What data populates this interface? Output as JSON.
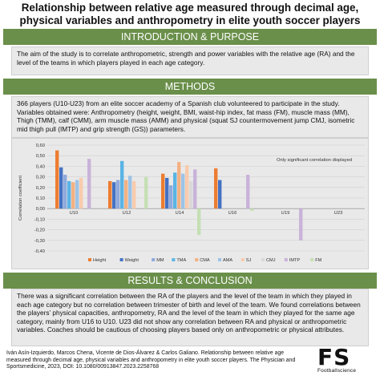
{
  "title": {
    "line1": "Relationship between relative age measured through decimal age,",
    "line2": "physical variables and anthropometry in elite youth soccer players"
  },
  "intro": {
    "heading": "INTRODUCTION & PURPOSE",
    "text": "The aim of the study is to correlate anthropometric, strength and power variables with the relative age (RA) and the level of the teams in which players played in each age category."
  },
  "methods": {
    "heading": "METHODS",
    "text": "366 players (U10-U23) from an elite soccer academy of a Spanish club volunteered to participate in the study. Variables obtained were: Anthropometry (height, weight, BMI, waist-hip index, fat mass (FM), muscle mass (MM), Thigh (TMM), calf (CMM), arm muscle mass (AMM) and physical (squat SJ countermovement jump CMJ, isometric mid thigh pull (IMTP) and grip strength (GS)) parameters."
  },
  "results": {
    "heading": "RESULTS & CONCLUSION",
    "text": "There was a significant correlation between the RA of the players and the level of the team in which they played in each age category but no correlation between trimester of birth and level of the team. We found correlations between the players’ physical capacities, anthropometry, RA and the level of the team in which they played for the same age category, mainly from U16 to U10. U23 did not show any correlation between RA and physical or anthropometric variables. Coaches should be cautious of choosing players based only on anthropometric or physical attributes."
  },
  "citation": "Iván Asín-Izquierdo, Marcos Chena, Vicente de Dios-Álvarez & Carlos Galiano. Relationship between relative age measured through decimal age, physical variables and anthropometry in elite youth soccer players. The Physician and Sportsmedicine, 2023, DOI: 10.1080/00913847.2023.2258768",
  "logo": {
    "mark": "FS",
    "sub": "Footballscience"
  },
  "chart_data": {
    "type": "bar",
    "title": "",
    "annotation": "Only significant correlation displayed",
    "xlabel": "",
    "ylabel": "Correlation coefficient",
    "ylim": [
      -0.4,
      0.6
    ],
    "yticks": [
      "0,60",
      "0,50",
      "0,40",
      "0,30",
      "0,20",
      "0,10",
      "0,00",
      "-0,10",
      "-0,20",
      "-0,30",
      "-0,40"
    ],
    "categories": [
      "U10",
      "U12",
      "U14",
      "U16",
      "U19",
      "U23"
    ],
    "grid": true,
    "legend": "bottom",
    "series": [
      {
        "name": "Height",
        "color": "#ed7d31",
        "values": [
          0.55,
          0.26,
          0.33,
          0.38,
          null,
          null
        ]
      },
      {
        "name": "Weight",
        "color": "#4472c4",
        "values": [
          0.39,
          0.25,
          0.29,
          0.27,
          null,
          null
        ]
      },
      {
        "name": "MM",
        "color": "#8faadc",
        "values": [
          0.32,
          0.27,
          0.22,
          null,
          null,
          null
        ]
      },
      {
        "name": "TMA",
        "color": "#5bb4e5",
        "values": [
          0.26,
          0.45,
          0.34,
          null,
          null,
          null
        ]
      },
      {
        "name": "CMA",
        "color": "#f4b183",
        "values": [
          0.25,
          0.27,
          0.44,
          null,
          null,
          null
        ]
      },
      {
        "name": "AMA",
        "color": "#9dc3e6",
        "values": [
          0.27,
          0.31,
          0.33,
          null,
          null,
          null
        ]
      },
      {
        "name": "SJ",
        "color": "#f8cbad",
        "values": [
          0.29,
          0.26,
          0.41,
          null,
          null,
          null
        ]
      },
      {
        "name": "CMJ",
        "color": "#d9d9d9",
        "values": [
          null,
          null,
          0.26,
          null,
          null,
          null
        ]
      },
      {
        "name": "IMTP",
        "color": "#c9b3d9",
        "values": [
          0.47,
          null,
          0.37,
          0.32,
          -0.3,
          null
        ]
      },
      {
        "name": "FM",
        "color": "#c5e0b4",
        "values": [
          null,
          0.3,
          -0.25,
          -0.02,
          null,
          null
        ]
      }
    ]
  }
}
